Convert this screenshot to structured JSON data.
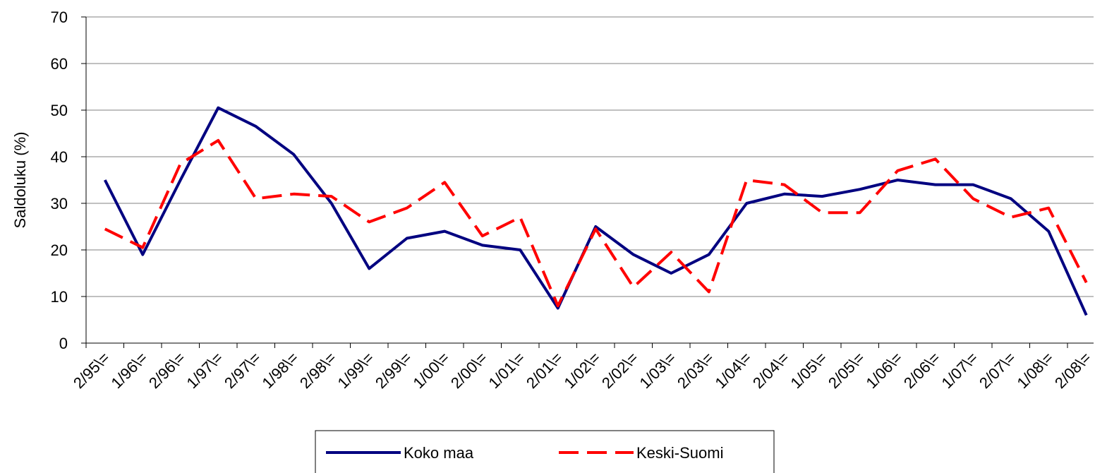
{
  "chart_data": {
    "type": "line",
    "y_label": "Saldoluku (%)",
    "categories": [
      "2/95\\=",
      "1/96\\=",
      "2/96\\=",
      "1/97\\=",
      "2/97\\=",
      "1/98\\=",
      "2/98\\=",
      "1/99\\=",
      "2/99\\=",
      "1/00\\=",
      "2/00\\=",
      "1/01\\=",
      "2/01\\=",
      "1/02\\=",
      "2/02\\=",
      "1/03\\=",
      "2/03\\=",
      "1/04\\=",
      "2/04\\=",
      "1/05\\=",
      "2/05\\=",
      "1/06\\=",
      "2/06\\=",
      "1/07\\=",
      "2/07\\=",
      "1/08\\=",
      "2/08\\="
    ],
    "series": [
      {
        "name": "Koko maa",
        "color": "#000080",
        "dash": "solid",
        "values": [
          35,
          19,
          35,
          50.5,
          46.5,
          40.5,
          30,
          16,
          22.5,
          24,
          21,
          20,
          7.5,
          25,
          19,
          15,
          19,
          30,
          32,
          31.5,
          33,
          35,
          34,
          34,
          31,
          24,
          6
        ]
      },
      {
        "name": "Keski-Suomi",
        "color": "#ff0000",
        "dash": "dashed",
        "values": [
          24.5,
          20.5,
          38.5,
          43.5,
          31,
          32,
          31.5,
          26,
          29,
          34.5,
          23,
          27,
          8,
          24.5,
          12,
          19.5,
          11,
          35,
          34,
          28,
          28,
          37,
          39.5,
          31,
          27,
          29,
          13
        ]
      }
    ],
    "ylim": [
      0,
      70
    ],
    "yticks": [
      0,
      10,
      20,
      30,
      40,
      50,
      60,
      70
    ],
    "grid": true,
    "legend": "bottom"
  }
}
